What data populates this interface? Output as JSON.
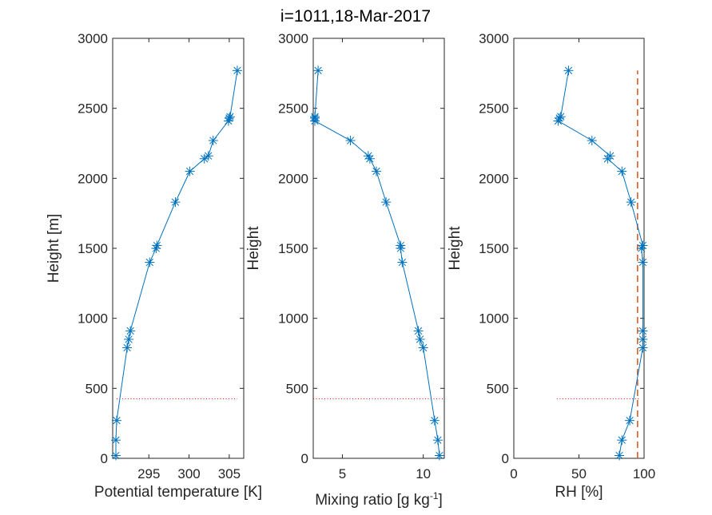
{
  "figure_title": "i=1011,18-Mar-2017",
  "colors": {
    "series": "#0072BD",
    "reference": "#D95319",
    "mixed_layer": "#FF0000",
    "axes": "#262626"
  },
  "chart_data": [
    {
      "type": "line",
      "marker": "asterisk",
      "title": "",
      "xlabel": "Potential temperature [K]",
      "ylabel": "Height [m]",
      "xlim": [
        290.5,
        306.8
      ],
      "ylim": [
        0,
        3000
      ],
      "xticks": [
        295,
        300,
        305
      ],
      "yticks": [
        0,
        500,
        1000,
        1500,
        2000,
        2500,
        3000
      ],
      "series": [
        {
          "x": [
            290.9,
            290.9,
            291.0,
            292.3,
            292.5,
            292.7,
            295.1,
            295.9,
            296.0,
            298.3,
            300.1,
            301.9,
            302.4,
            303.0,
            304.9,
            305.0,
            305.1,
            306.0
          ],
          "y": [
            20,
            130,
            270,
            790,
            850,
            910,
            1400,
            1500,
            1520,
            1830,
            2050,
            2140,
            2160,
            2270,
            2410,
            2430,
            2440,
            2770
          ]
        }
      ],
      "reference_line": {
        "style": "dotted",
        "x": [
          291.0,
          306.0
        ],
        "y": [
          425,
          425
        ]
      }
    },
    {
      "type": "line",
      "marker": "asterisk",
      "title": "",
      "xlabel": "Mixing ratio [g kg",
      "xlabel_superscript": "-1",
      "xlabel_suffix": "]",
      "ylabel": "Height",
      "xlim": [
        3.2,
        11.3
      ],
      "ylim": [
        0,
        3000
      ],
      "xticks": [
        5,
        10
      ],
      "yticks": [
        0,
        500,
        1000,
        1500,
        2000,
        2500,
        3000
      ],
      "series": [
        {
          "x": [
            11.0,
            10.9,
            10.7,
            10.0,
            9.8,
            9.7,
            8.7,
            8.6,
            8.6,
            7.7,
            7.1,
            6.7,
            6.6,
            5.5,
            3.3,
            3.3,
            3.3,
            3.5
          ],
          "y": [
            20,
            130,
            270,
            790,
            850,
            910,
            1400,
            1500,
            1520,
            1830,
            2050,
            2140,
            2160,
            2270,
            2410,
            2430,
            2440,
            2770
          ]
        }
      ],
      "reference_line": {
        "style": "dotted",
        "x": [
          3.2,
          11.3
        ],
        "y": [
          425,
          425
        ]
      }
    },
    {
      "type": "line",
      "marker": "asterisk",
      "title": "",
      "xlabel": "RH [%]",
      "ylabel": "Height",
      "xlim": [
        0,
        100
      ],
      "ylim": [
        0,
        3000
      ],
      "xticks": [
        0,
        50,
        100
      ],
      "yticks": [
        0,
        500,
        1000,
        1500,
        2000,
        2500,
        3000
      ],
      "series": [
        {
          "x": [
            81,
            83,
            89,
            99,
            99,
            99,
            99,
            98,
            99,
            90,
            83,
            72,
            74,
            60,
            34,
            35,
            36,
            42
          ],
          "y": [
            20,
            130,
            270,
            790,
            850,
            910,
            1400,
            1500,
            1520,
            1830,
            2050,
            2140,
            2160,
            2270,
            2410,
            2430,
            2440,
            2770
          ]
        }
      ],
      "reference_line": {
        "style": "dotted",
        "x": [
          33,
          97
        ],
        "y": [
          425,
          425
        ]
      },
      "vertical_reference": {
        "style": "dashed",
        "x": [
          95,
          95
        ],
        "y": [
          0,
          2770
        ]
      }
    }
  ]
}
